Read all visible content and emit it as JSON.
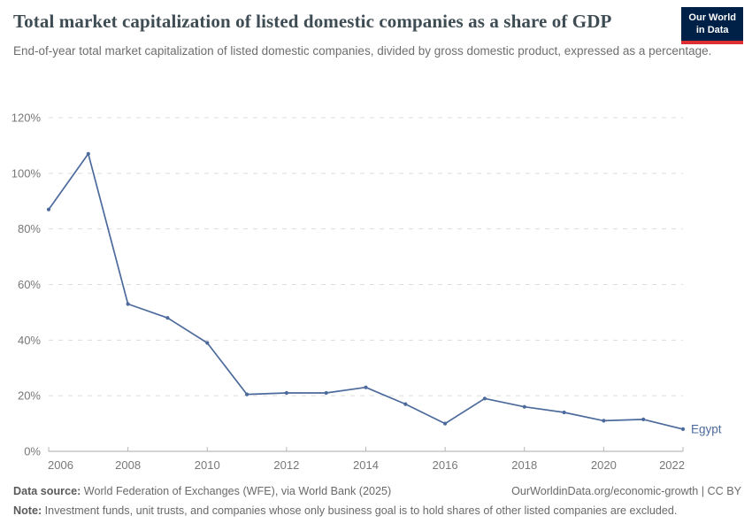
{
  "header": {
    "title": "Total market capitalization of listed domestic companies as a share of GDP",
    "subtitle": "End-of-year total market capitalization of listed domestic companies, divided by gross domestic product, expressed as a percentage.",
    "logo": {
      "line1": "Our World",
      "line2": "in Data",
      "bg_color": "#002147",
      "accent_color": "#dc2f33"
    }
  },
  "chart_data": {
    "type": "line",
    "title": "Total market capitalization of listed domestic companies as a share of GDP",
    "x": [
      2006,
      2007,
      2008,
      2009,
      2010,
      2011,
      2012,
      2013,
      2014,
      2015,
      2016,
      2017,
      2018,
      2019,
      2020,
      2021,
      2022
    ],
    "series": [
      {
        "name": "Egypt",
        "color": "#4C6A9C",
        "values": [
          87,
          107,
          53,
          48,
          39,
          20.5,
          21,
          21,
          23,
          17,
          10,
          19,
          16,
          14,
          11,
          11.5,
          8
        ]
      }
    ],
    "end_label": "Egypt",
    "xlabel": "",
    "ylabel": "",
    "xlim": [
      2006,
      2022
    ],
    "ylim": [
      0,
      120
    ],
    "x_ticks": [
      2006,
      2008,
      2010,
      2012,
      2014,
      2016,
      2018,
      2020,
      2022
    ],
    "y_ticks": [
      0,
      20,
      40,
      60,
      80,
      100,
      120
    ],
    "y_tick_suffix": "%",
    "grid": "horizontal-dashed",
    "legend_position": "end-of-line",
    "colors": {
      "line": "#4C6A9C",
      "gridline": "#dcdcdc",
      "axis": "#a8a8a8",
      "tick_label": "#787878"
    }
  },
  "footer": {
    "datasource_label": "Data source:",
    "datasource_text": " World Federation of Exchanges (WFE), via World Bank (2025)",
    "link_text": "OurWorldinData.org/economic-growth",
    "license_text": " | CC BY",
    "note_label": "Note:",
    "note_text": " Investment funds, unit trusts, and companies whose only business goal is to hold shares of other listed companies are excluded."
  }
}
